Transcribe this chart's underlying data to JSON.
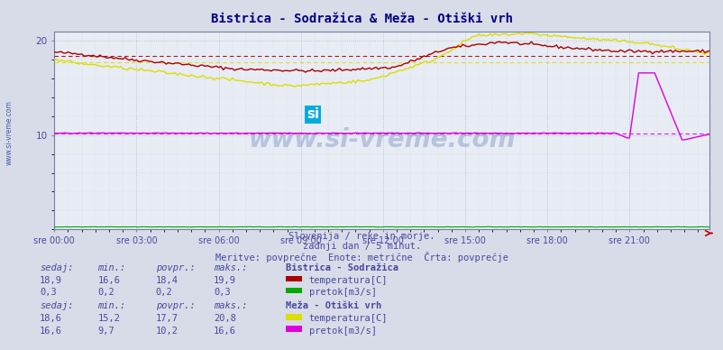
{
  "title": "Bistrica - Sodražica & Meža - Otiški vrh",
  "subtitle1": "Slovenija / reke in morje.",
  "subtitle2": "zadnji dan / 5 minut.",
  "subtitle3": "Meritve: povprečne  Enote: metrične  Črta: povprečje",
  "xlabel_ticks": [
    "sre 00:00",
    "sre 03:00",
    "sre 06:00",
    "sre 09:00",
    "sre 12:00",
    "sre 15:00",
    "sre 18:00",
    "sre 21:00"
  ],
  "n_points": 288,
  "fig_bg": "#d8dce8",
  "plot_bg": "#e8ecf4",
  "title_color": "#000080",
  "label_color": "#4848a0",
  "watermark": "www.si-vreme.com",
  "ylim": [
    0,
    21
  ],
  "yticks": [
    10,
    20
  ],
  "colors": {
    "bistrica_temp": "#aa0000",
    "bistrica_flow": "#00aa00",
    "meza_temp": "#dddd00",
    "meza_flow": "#dd00dd"
  },
  "avg_lines": {
    "bistrica_temp": 18.4,
    "meza_temp": 17.7,
    "meza_flow": 10.2
  },
  "table_data": {
    "bistrica": {
      "sedaj_temp": "18,9",
      "min_temp": "16,6",
      "povpr_temp": "18,4",
      "maks_temp": "19,9",
      "sedaj_flow": "0,3",
      "min_flow": "0,2",
      "povpr_flow": "0,2",
      "maks_flow": "0,3"
    },
    "meza": {
      "sedaj_temp": "18,6",
      "min_temp": "15,2",
      "povpr_temp": "17,7",
      "maks_temp": "20,8",
      "sedaj_flow": "16,6",
      "min_flow": "9,7",
      "povpr_flow": "10,2",
      "maks_flow": "16,6"
    }
  }
}
